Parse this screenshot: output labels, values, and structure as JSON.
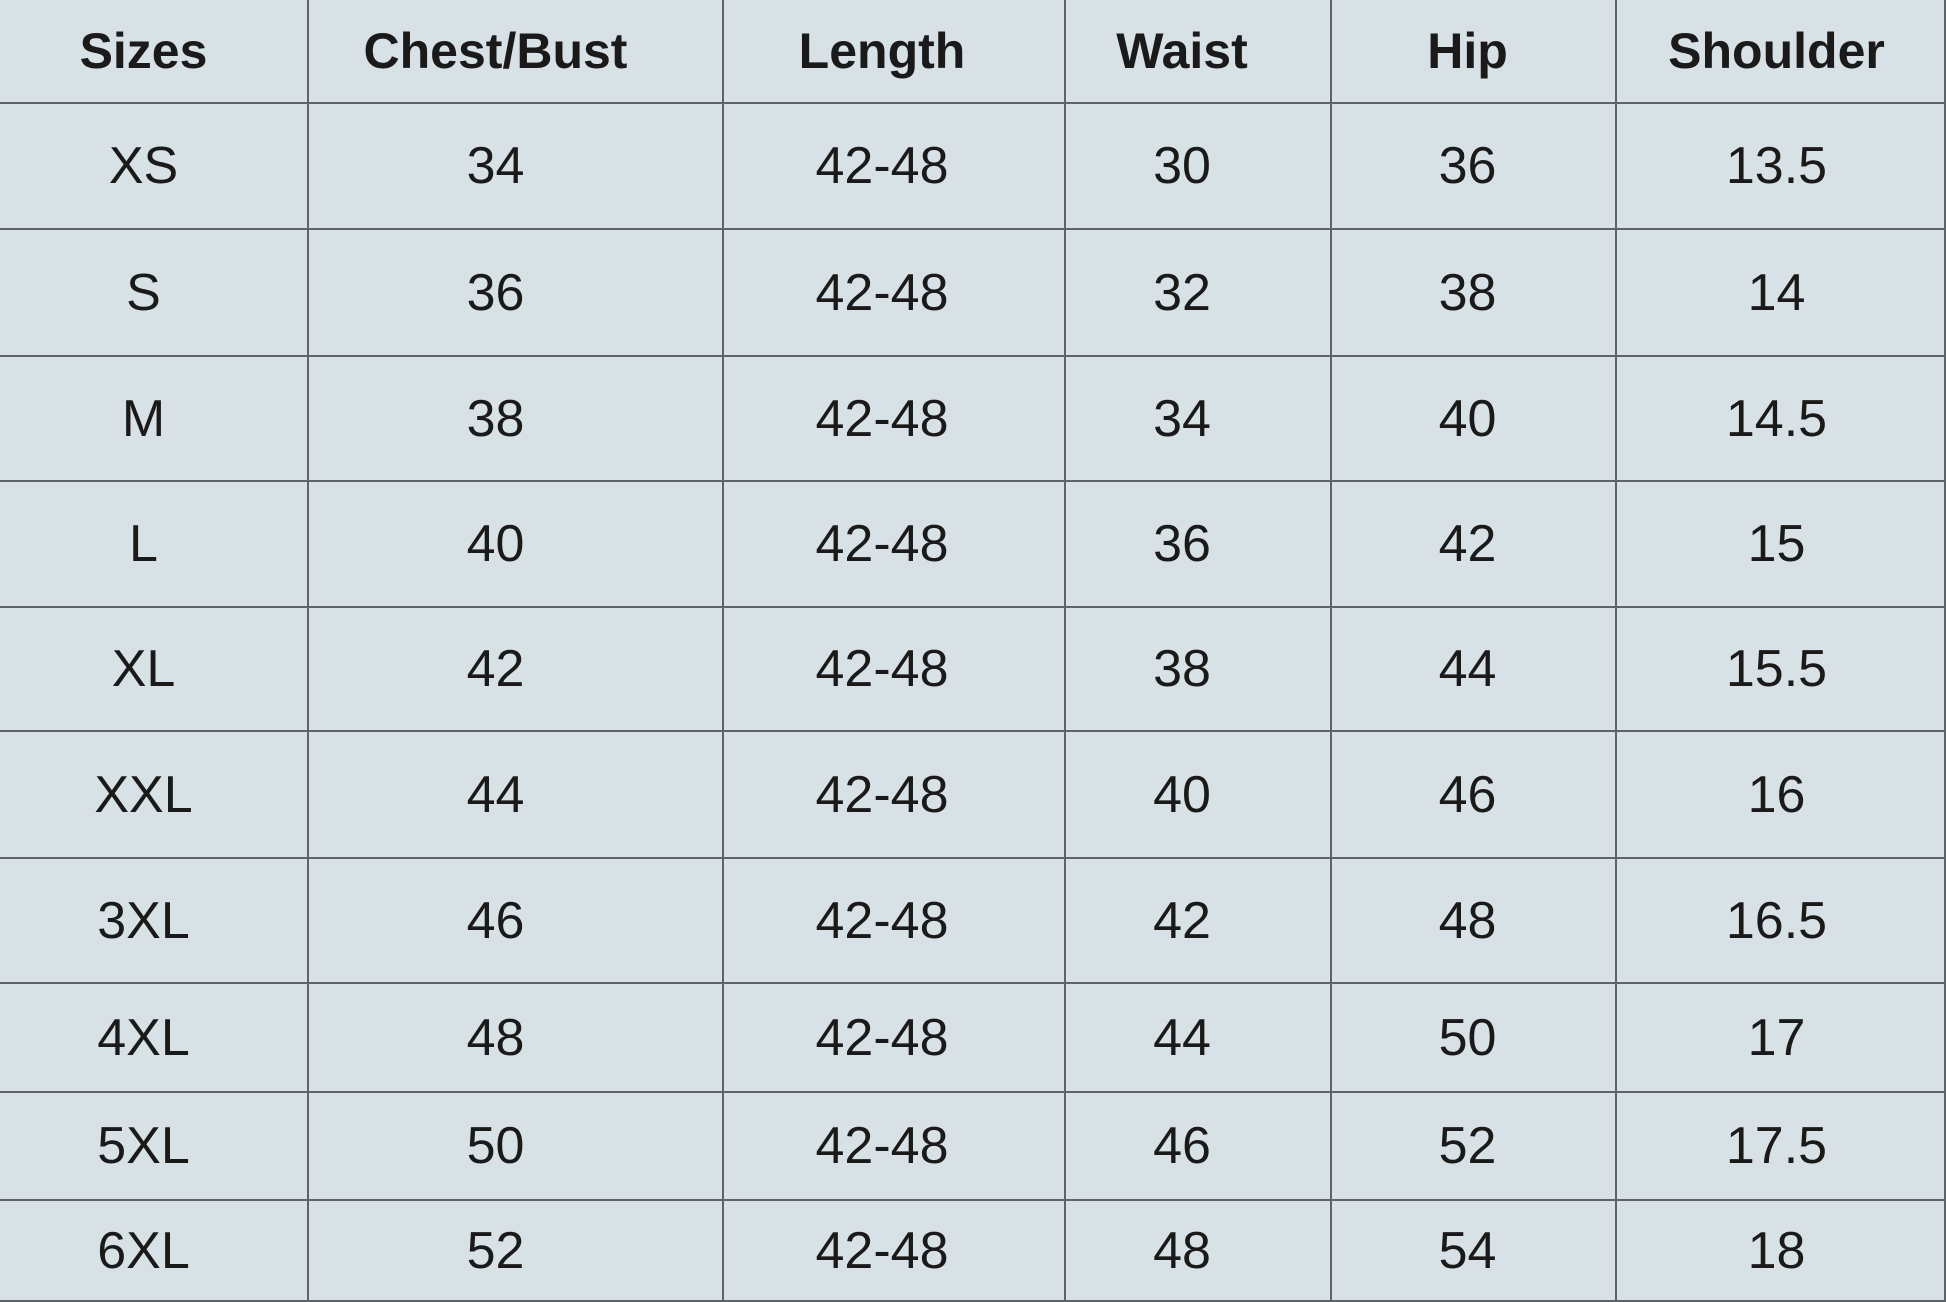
{
  "table": {
    "header": [
      "Sizes",
      "Chest/Bust",
      "Length",
      "Waist",
      "Hip",
      "Shoulder"
    ],
    "rows": [
      [
        "XS",
        "34",
        "42-48",
        "30",
        "36",
        "13.5"
      ],
      [
        "S",
        "36",
        "42-48",
        "32",
        "38",
        "14"
      ],
      [
        "M",
        "38",
        "42-48",
        "34",
        "40",
        "14.5"
      ],
      [
        "L",
        "40",
        "42-48",
        "36",
        "42",
        "15"
      ],
      [
        "XL",
        "42",
        "42-48",
        "38",
        "44",
        "15.5"
      ],
      [
        "XXL",
        "44",
        "42-48",
        "40",
        "46",
        "16"
      ],
      [
        "3XL",
        "46",
        "42-48",
        "42",
        "48",
        "16.5"
      ],
      [
        "4XL",
        "48",
        "42-48",
        "44",
        "50",
        "17"
      ],
      [
        "5XL",
        "50",
        "42-48",
        "46",
        "52",
        "17.5"
      ],
      [
        "6XL",
        "52",
        "42-48",
        "48",
        "54",
        "18"
      ]
    ]
  }
}
